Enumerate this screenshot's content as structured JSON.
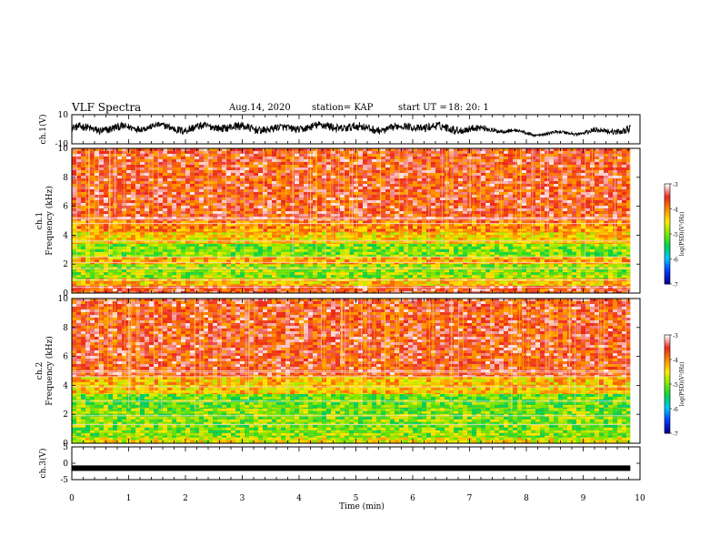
{
  "header": {
    "title": "VLF Spectra",
    "date": "Aug.14, 2020",
    "station": "station= KAP",
    "start_label": "start  UT  =",
    "start_time": "18: 20: 1"
  },
  "chart_data": [
    {
      "type": "line",
      "panel": "ch1-waveform",
      "ylabel": "ch.1(V)",
      "ylim": [
        -10,
        10
      ],
      "yticks": [
        "10",
        "-10"
      ],
      "xlim": [
        0,
        10
      ],
      "x_minutes": [
        0,
        0.5,
        1,
        1.5,
        2,
        2.5,
        3,
        3.5,
        4,
        4.5,
        5,
        5.5,
        6,
        6.5,
        7,
        7.5,
        8,
        8.5,
        9,
        9.5,
        9.8
      ],
      "center_volts": [
        1,
        0,
        1,
        2,
        0,
        2,
        1,
        0,
        1,
        2,
        1,
        0,
        2,
        1,
        0,
        0,
        -3,
        -3,
        -2,
        -1,
        0
      ],
      "amplitude_volts": [
        5,
        6,
        5,
        4,
        6,
        5,
        6,
        5,
        5,
        6,
        6,
        5,
        5,
        6,
        5,
        3,
        2,
        2,
        3,
        4,
        5
      ]
    },
    {
      "type": "heatmap",
      "panel": "ch1-spectrogram",
      "ylabel_ch": "ch.1",
      "ylabel": "Frequency (kHz)",
      "ylim": [
        0,
        10
      ],
      "yticks": [
        "0",
        "2",
        "4",
        "6",
        "8",
        "10"
      ],
      "xlim": [
        0,
        9.83
      ],
      "colorbar": {
        "label": "log(PSD)(V²/Hz)",
        "range": [
          -7,
          -3
        ],
        "ticks": [
          "-3",
          "-4",
          "-5",
          "-6",
          "-7"
        ]
      },
      "band_levels_log_psd": [
        {
          "from_khz": 0,
          "to_khz": 0.5,
          "level": -3.6
        },
        {
          "from_khz": 0.5,
          "to_khz": 1.0,
          "level": -4.3
        },
        {
          "from_khz": 1.0,
          "to_khz": 2.0,
          "level": -4.9
        },
        {
          "from_khz": 2.0,
          "to_khz": 2.5,
          "level": -4.2
        },
        {
          "from_khz": 2.5,
          "to_khz": 3.4,
          "level": -5.0
        },
        {
          "from_khz": 3.4,
          "to_khz": 4.2,
          "level": -4.4
        },
        {
          "from_khz": 4.2,
          "to_khz": 5.0,
          "level": -4.0
        },
        {
          "from_khz": 5.0,
          "to_khz": 10.0,
          "level": -3.6
        }
      ],
      "constant_lines_khz": [
        0.4,
        0.9,
        1.7,
        2.1,
        2.5,
        3.6,
        4.8,
        5.1,
        5.2
      ]
    },
    {
      "type": "heatmap",
      "panel": "ch2-spectrogram",
      "ylabel_ch": "ch.2",
      "ylabel": "Frequency (kHz)",
      "ylim": [
        0,
        10
      ],
      "yticks": [
        "0",
        "2",
        "4",
        "6",
        "8",
        "10"
      ],
      "xlim": [
        0,
        9.83
      ],
      "colorbar": {
        "label": "log(PSD)(V²/Hz)",
        "range": [
          -7,
          -3
        ],
        "ticks": [
          "-3",
          "-4",
          "-5",
          "-6",
          "-7"
        ]
      },
      "band_levels_log_psd": [
        {
          "from_khz": 0,
          "to_khz": 0.4,
          "level": -4.6
        },
        {
          "from_khz": 0.4,
          "to_khz": 2.4,
          "level": -5.0
        },
        {
          "from_khz": 2.4,
          "to_khz": 3.4,
          "level": -5.1
        },
        {
          "from_khz": 3.4,
          "to_khz": 4.6,
          "level": -4.3
        },
        {
          "from_khz": 4.6,
          "to_khz": 10.0,
          "level": -3.6
        }
      ],
      "constant_lines_khz": [
        1.3,
        1.9,
        2.9,
        3.9,
        4.6,
        4.9,
        5.0
      ]
    },
    {
      "type": "line",
      "panel": "ch3-waveform",
      "ylabel": "ch.3(V)",
      "ylim": [
        -5,
        5
      ],
      "yticks": [
        "5",
        "0",
        "-5"
      ],
      "xlim": [
        0,
        10
      ],
      "x_minutes": [
        0,
        9.83
      ],
      "values": [
        -1.5,
        -1.5
      ],
      "xlabel": "Time (min)",
      "xticks": [
        "0",
        "1",
        "2",
        "3",
        "4",
        "5",
        "6",
        "7",
        "8",
        "9",
        "10"
      ]
    }
  ]
}
